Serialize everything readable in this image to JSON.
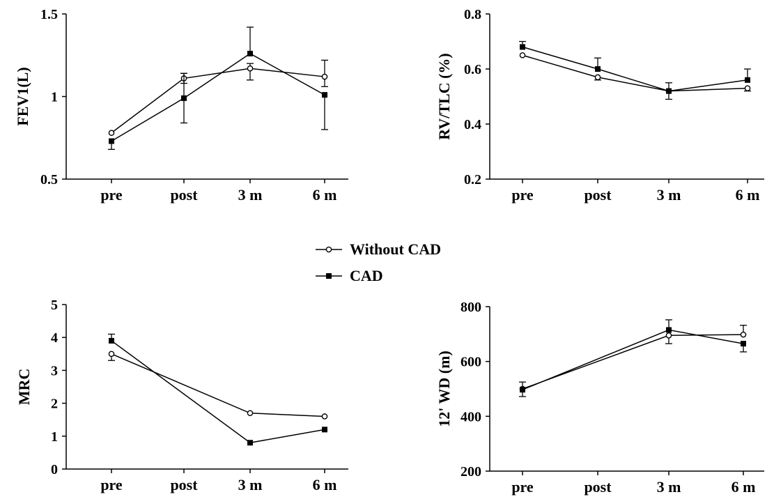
{
  "legend": {
    "placement": "center",
    "items": [
      {
        "label": "Without CAD",
        "marker": "open-circle"
      },
      {
        "label": "CAD",
        "marker": "filled-square"
      }
    ]
  },
  "chart_data": [
    {
      "type": "line",
      "ylabel": "FEV1(L)",
      "categories": [
        "pre",
        "post",
        "3 m",
        "6 m"
      ],
      "ylim": [
        0.5,
        1.5
      ],
      "yticks": [
        "0.5",
        "1",
        "1.5"
      ],
      "ytick_values": [
        0.5,
        1,
        1.5
      ],
      "series": [
        {
          "name": "Without CAD",
          "marker": "open-circle",
          "values": [
            0.78,
            1.11,
            1.17,
            1.12
          ],
          "error_high": [
            0.78,
            1.14,
            1.2,
            1.22
          ],
          "error_low": [
            0.78,
            1.08,
            1.1,
            1.06
          ]
        },
        {
          "name": "CAD",
          "marker": "filled-square",
          "values": [
            0.73,
            0.99,
            1.26,
            1.01
          ],
          "error_high": [
            0.73,
            1.14,
            1.42,
            1.01
          ],
          "error_low": [
            0.68,
            0.84,
            1.26,
            0.8
          ]
        }
      ]
    },
    {
      "type": "line",
      "ylabel": "RV/TLC (%)",
      "categories": [
        "pre",
        "post",
        "3 m",
        "6 m"
      ],
      "ylim": [
        0.2,
        0.8
      ],
      "yticks": [
        "0.2",
        "0.4",
        "0.6",
        "0.8"
      ],
      "ytick_values": [
        0.2,
        0.4,
        0.6,
        0.8
      ],
      "series": [
        {
          "name": "Without CAD",
          "marker": "open-circle",
          "values": [
            0.65,
            0.57,
            0.52,
            0.53
          ],
          "error_high": [
            0.65,
            0.57,
            0.52,
            0.53
          ],
          "error_low": [
            0.65,
            0.56,
            0.49,
            0.52
          ]
        },
        {
          "name": "CAD",
          "marker": "filled-square",
          "values": [
            0.68,
            0.6,
            0.52,
            0.56
          ],
          "error_high": [
            0.7,
            0.64,
            0.55,
            0.6
          ],
          "error_low": [
            0.68,
            0.6,
            0.52,
            0.56
          ]
        }
      ]
    },
    {
      "type": "line",
      "ylabel": "MRC",
      "categories": [
        "pre",
        "post",
        "3 m",
        "6 m"
      ],
      "ylim": [
        0,
        5
      ],
      "yticks": [
        "0",
        "1",
        "2",
        "3",
        "4",
        "5"
      ],
      "ytick_values": [
        0,
        1,
        2,
        3,
        4,
        5
      ],
      "series": [
        {
          "name": "Without CAD",
          "marker": "open-circle",
          "values": [
            3.5,
            null,
            1.7,
            1.6
          ],
          "error_high": [
            3.5,
            null,
            1.7,
            1.6
          ],
          "error_low": [
            3.3,
            null,
            1.7,
            1.6
          ]
        },
        {
          "name": "CAD",
          "marker": "filled-square",
          "values": [
            3.9,
            null,
            0.8,
            1.2
          ],
          "error_high": [
            4.1,
            null,
            0.8,
            1.2
          ],
          "error_low": [
            3.9,
            null,
            0.8,
            1.2
          ]
        }
      ]
    },
    {
      "type": "line",
      "ylabel": "12' WD (m)",
      "categories": [
        "pre",
        "post",
        "3 m",
        "6 m"
      ],
      "ylim": [
        200,
        800
      ],
      "yticks": [
        "200",
        "400",
        "600",
        "800"
      ],
      "ytick_values": [
        200,
        400,
        600,
        800
      ],
      "series": [
        {
          "name": "Without CAD",
          "marker": "open-circle",
          "values": [
            500,
            null,
            695,
            698
          ],
          "error_high": [
            525,
            null,
            695,
            732
          ],
          "error_low": [
            500,
            null,
            665,
            698
          ]
        },
        {
          "name": "CAD",
          "marker": "filled-square",
          "values": [
            497,
            null,
            715,
            665
          ],
          "error_high": [
            497,
            null,
            752,
            665
          ],
          "error_low": [
            472,
            null,
            715,
            635
          ]
        }
      ]
    }
  ]
}
